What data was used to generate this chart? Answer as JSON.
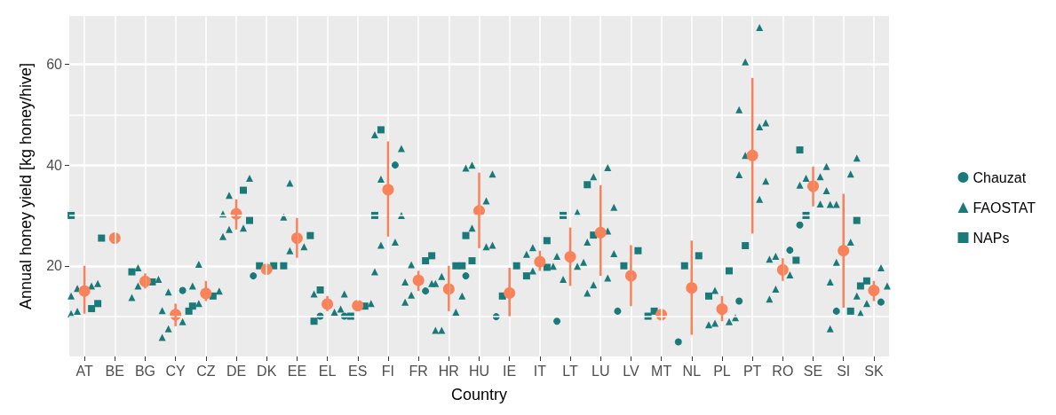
{
  "chart_data": {
    "type": "scatter",
    "xlabel": "Country",
    "ylabel": "Annual honey yield [kg honey/hive]",
    "categories": [
      "AT",
      "BE",
      "BG",
      "CY",
      "CZ",
      "DE",
      "DK",
      "EE",
      "EL",
      "ES",
      "FI",
      "FR",
      "HR",
      "HU",
      "IE",
      "IT",
      "LT",
      "LU",
      "LV",
      "MT",
      "NL",
      "PL",
      "PT",
      "RO",
      "SE",
      "SI",
      "SK"
    ],
    "ylim": [
      2,
      69.6
    ],
    "yticks": [
      20,
      40,
      60
    ],
    "grid": true,
    "legend": "right",
    "series": [
      {
        "name": "Chauzat",
        "color": "#1a7a7a",
        "marker": "circle",
        "x": [
          "CY",
          "DK",
          "EL",
          "ES",
          "FI",
          "FR",
          "HU",
          "IE",
          "LT",
          "LV",
          "NL",
          "PT",
          "RO",
          "SE",
          "SI",
          "SK"
        ],
        "values": [
          15.1,
          18,
          10,
          10,
          40,
          15,
          18,
          9.9,
          9,
          11,
          4.9,
          13,
          23.1,
          28.1,
          11,
          12.8
        ]
      },
      {
        "name": "FAOSTAT",
        "color": "#1a7a7a",
        "marker": "triangle",
        "x": [
          "AT",
          "AT",
          "AT",
          "AT",
          "AT",
          "AT",
          "BG",
          "BG",
          "BG",
          "BG",
          "CY",
          "CY",
          "CY",
          "CY",
          "CY",
          "CZ",
          "CZ",
          "CZ",
          "CZ",
          "DE",
          "DE",
          "DE",
          "DE",
          "DE",
          "DE",
          "EE",
          "EE",
          "EE",
          "EE",
          "EL",
          "EL",
          "EL",
          "ES",
          "ES",
          "FI",
          "FI",
          "FI",
          "FI",
          "FI",
          "FI",
          "FI",
          "FR",
          "FR",
          "FR",
          "FR",
          "FR",
          "HR",
          "HR",
          "HR",
          "HR",
          "HR",
          "HR",
          "HU",
          "HU",
          "HU",
          "HU",
          "HU",
          "HU",
          "HU",
          "IT",
          "IT",
          "IT",
          "IT",
          "LT",
          "LT",
          "LT",
          "LT",
          "LT",
          "LU",
          "LU",
          "LU",
          "LU",
          "LU",
          "LU",
          "LU",
          "LU",
          "LU",
          "PL",
          "PL",
          "PL",
          "PL",
          "PL",
          "PT",
          "PT",
          "PT",
          "PT",
          "PT",
          "PT",
          "PT",
          "PT",
          "PT",
          "RO",
          "RO",
          "RO",
          "RO",
          "RO",
          "SE",
          "SE",
          "SE",
          "SE",
          "SE",
          "SE",
          "SI",
          "SI",
          "SI",
          "SI",
          "SI",
          "SI",
          "SI",
          "SI",
          "SI",
          "SK",
          "SK",
          "SK",
          "SK"
        ],
        "values": [
          16.5,
          16,
          15.5,
          14,
          11,
          10.5,
          19.6,
          17.3,
          16,
          13.7,
          14.8,
          11.1,
          8.9,
          7.5,
          5.8,
          20.3,
          16,
          15,
          12.5,
          37.4,
          34,
          30.3,
          27.5,
          27.2,
          25.8,
          36.4,
          29.7,
          23.8,
          23,
          14.4,
          11.4,
          10.8,
          14.4,
          12.5,
          46,
          43.3,
          37.2,
          24.7,
          24.1,
          18.8,
          30,
          20.2,
          16.8,
          16.5,
          14.2,
          12.8,
          17.9,
          16.5,
          14,
          10.8,
          7.2,
          7.2,
          40,
          39.4,
          38.2,
          32.9,
          27.5,
          24.1,
          23.8,
          23.6,
          22.3,
          19.9,
          19,
          30.6,
          21.9,
          20.7,
          19.9,
          17.3,
          39.5,
          37.7,
          31.6,
          26.9,
          24.7,
          22.4,
          17.6,
          16.2,
          14.6,
          15.1,
          9.7,
          8.9,
          8.6,
          8.3,
          67.3,
          60.5,
          51,
          48.4,
          47.6,
          41.9,
          38.1,
          36.8,
          33.2,
          21.9,
          21.3,
          18.2,
          15.4,
          13.4,
          39.7,
          37.7,
          37.4,
          36,
          34.9,
          32.3,
          41.4,
          38.2,
          32.2,
          32.2,
          24.7,
          20.7,
          16.8,
          14,
          7.5,
          19.6,
          16,
          12.5,
          10.6
        ]
      },
      {
        "name": "NAPs",
        "color": "#1a7a7a",
        "marker": "square",
        "x": [
          "AT",
          "AT",
          "AT",
          "BE",
          "BG",
          "BG",
          "CY",
          "CZ",
          "CZ",
          "DE",
          "DE",
          "DK",
          "DK",
          "EE",
          "EE",
          "EL",
          "EL",
          "ES",
          "ES",
          "FI",
          "FI",
          "FR",
          "FR",
          "HR",
          "HR",
          "HU",
          "HU",
          "IE",
          "IE",
          "IT",
          "IT",
          "IT",
          "LT",
          "LU",
          "LU",
          "LV",
          "LV",
          "MT",
          "MT",
          "NL",
          "NL",
          "PL",
          "PL",
          "PT",
          "RO",
          "SE",
          "SE",
          "SI",
          "SI",
          "SK",
          "SK"
        ],
        "values": [
          30,
          12.5,
          11.5,
          25.5,
          18.8,
          16.8,
          11,
          14,
          12,
          35,
          29,
          20,
          20,
          26,
          20,
          15.2,
          9,
          12,
          10,
          47,
          30,
          22,
          21,
          20,
          20,
          26,
          21,
          20,
          14,
          25,
          19.7,
          18,
          30,
          36.1,
          26.1,
          23,
          20,
          11,
          10,
          22,
          20,
          19,
          14,
          24,
          21.1,
          43,
          30,
          29,
          11,
          17,
          16
        ]
      },
      {
        "color": "#f8825a",
        "marker": "circle",
        "values": [
          15,
          25.5,
          16.9,
          10.3,
          14.5,
          30.3,
          19.3,
          25.5,
          12.4,
          12.1,
          35.1,
          17.1,
          15.4,
          30.9,
          14.6,
          20.8,
          21.8,
          26.6,
          18,
          10.3,
          15.6,
          11.4,
          41.9,
          19.2,
          35.8,
          23,
          15.1
        ],
        "errors": [
          [
            10.5,
            20
          ],
          null,
          [
            15.5,
            18.5
          ],
          [
            8,
            12.5
          ],
          [
            13,
            17
          ],
          [
            27.2,
            33.2
          ],
          null,
          [
            21.6,
            29.5
          ],
          [
            11,
            14
          ],
          [
            11,
            13
          ],
          [
            25.8,
            44.7
          ],
          [
            15,
            19
          ],
          [
            11,
            20
          ],
          [
            23.5,
            38.5
          ],
          [
            10,
            19.6
          ],
          [
            19,
            23
          ],
          [
            16,
            27.6
          ],
          [
            18,
            36
          ],
          [
            12,
            24.1
          ],
          null,
          [
            6.3,
            25
          ],
          [
            9,
            14
          ],
          [
            26.4,
            57.3
          ],
          [
            17,
            21.5
          ],
          [
            31.8,
            39.7
          ],
          [
            11.7,
            34.3
          ],
          [
            13,
            17
          ]
        ]
      }
    ]
  }
}
